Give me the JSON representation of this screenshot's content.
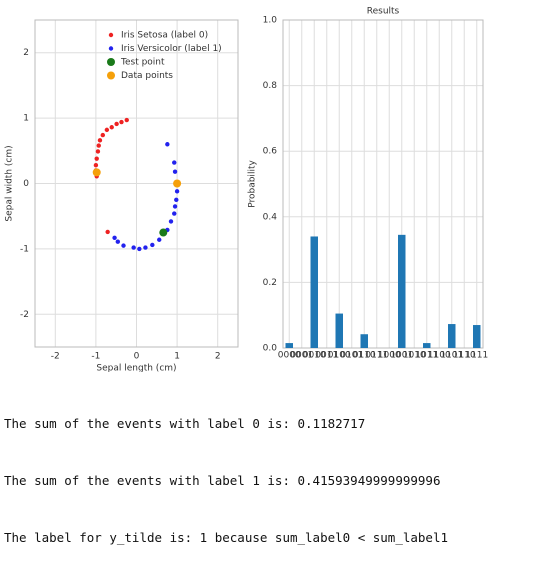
{
  "chart_data": [
    {
      "type": "scatter",
      "xlabel": "Sepal length (cm)",
      "ylabel": "Sepal width (cm)",
      "xlim": [
        -2.5,
        2.5
      ],
      "xticks": [
        -2,
        -1,
        0,
        1,
        2
      ],
      "ylim": [
        -2.5,
        2.5
      ],
      "yticks": [
        -2,
        -1,
        0,
        1,
        2
      ],
      "grid": true,
      "legend": "upper right",
      "series": [
        {
          "name": "Iris Setosa (label 0)",
          "color": "#ee2222",
          "x": [
            -0.24,
            -0.37,
            -0.49,
            -0.61,
            -0.73,
            -0.83,
            -0.9,
            -0.93,
            -0.95,
            -0.98,
            -1.0,
            -1.0,
            -0.98,
            -0.71
          ],
          "y": [
            0.97,
            0.94,
            0.91,
            0.86,
            0.82,
            0.74,
            0.66,
            0.58,
            0.49,
            0.38,
            0.28,
            0.2,
            0.11,
            -0.74
          ]
        },
        {
          "name": "Iris Versicolor (label 1)",
          "color": "#2222ee",
          "x": [
            0.76,
            0.93,
            0.95,
            1.0,
            0.98,
            0.95,
            0.93,
            0.85,
            0.76,
            0.56,
            0.39,
            0.22,
            0.07,
            -0.07,
            -0.32,
            -0.46,
            -0.54
          ],
          "y": [
            0.6,
            0.32,
            0.18,
            -0.12,
            -0.25,
            -0.35,
            -0.46,
            -0.58,
            -0.71,
            -0.86,
            -0.94,
            -0.98,
            -1.0,
            -0.98,
            -0.95,
            -0.89,
            -0.83
          ]
        },
        {
          "name": "Test point",
          "color": "#1a7a1a",
          "x": [
            0.66
          ],
          "y": [
            -0.75
          ]
        },
        {
          "name": "Data points",
          "color": "#f5a00a",
          "x": [
            -0.98,
            1.0
          ],
          "y": [
            0.17,
            0.0
          ]
        }
      ]
    },
    {
      "type": "bar",
      "title": "Results",
      "ylabel": "Probability",
      "categories": [
        "0000",
        "0001",
        "0010",
        "0011",
        "0100",
        "0101",
        "0110",
        "0111",
        "1000",
        "1001",
        "1010",
        "1011",
        "1100",
        "1101",
        "1110",
        "1111"
      ],
      "values": [
        0.015,
        0,
        0.34,
        0,
        0.105,
        0,
        0.042,
        0,
        0,
        0.345,
        0,
        0.015,
        0,
        0.073,
        0,
        0.07
      ],
      "color": "#1f77b4",
      "ylim": [
        0,
        1
      ],
      "yticks": [
        {
          "value": 0,
          "label": "0.0"
        },
        0.2,
        0.4,
        0.6,
        0.8,
        {
          "value": 1,
          "label": "1.0"
        }
      ],
      "grid": true
    }
  ],
  "text_lines": [
    "The sum of the events with label 0 is: 0.1182717",
    "The sum of the events with label 1 is: 0.41593949999999996",
    "The label for y_tilde is: 1 because sum_label0 < sum_label1"
  ]
}
